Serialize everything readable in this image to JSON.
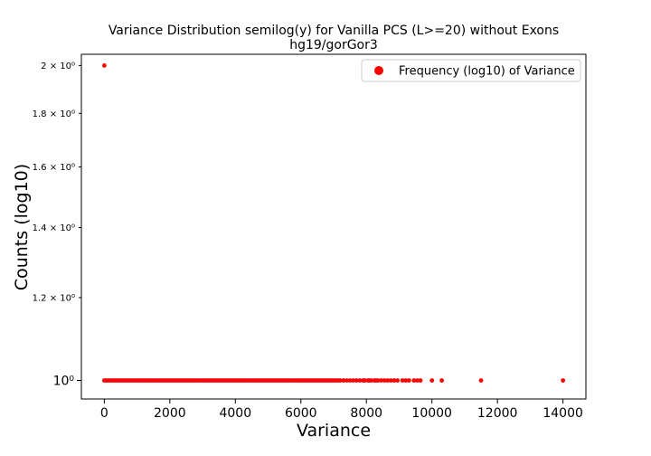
{
  "chart_data": {
    "type": "scatter",
    "title": "Variance Distribution semilog(y) for Vanilla PCS (L>=20) without Exons",
    "subtitle": "hg19/gorGor3",
    "xlabel": "Variance",
    "ylabel": "Counts (log10)",
    "xlim": [
      -700,
      14700
    ],
    "ylim": [
      0.96,
      2.05
    ],
    "yscale": "log",
    "grid": false,
    "legend_position": "top-right",
    "x_ticks": [
      0,
      2000,
      4000,
      6000,
      8000,
      10000,
      12000,
      14000
    ],
    "x_tick_labels": [
      "0",
      "2000",
      "4000",
      "6000",
      "8000",
      "10000",
      "12000",
      "14000"
    ],
    "y_ticks_major": [
      {
        "value": 1,
        "label": "10⁰"
      }
    ],
    "y_ticks_minor": [
      {
        "value": 1.2,
        "label": "1.2 × 10⁰"
      },
      {
        "value": 1.4,
        "label": "1.4 × 10⁰"
      },
      {
        "value": 1.6,
        "label": "1.6 × 10⁰"
      },
      {
        "value": 1.8,
        "label": "1.8 × 10⁰"
      },
      {
        "value": 2.0,
        "label": "2 × 10⁰"
      }
    ],
    "series": [
      {
        "name": "Frequency (log10) of Variance",
        "color": "#ff0000",
        "points": [
          {
            "x": 0,
            "y": 2.0
          }
        ],
        "dense_range": {
          "from": 0,
          "to": 7200,
          "y": 1.0
        },
        "extra_points_y1": [
          7300,
          7400,
          7500,
          7600,
          7700,
          7800,
          7900,
          7950,
          8050,
          8100,
          8150,
          8250,
          8300,
          8350,
          8450,
          8550,
          8650,
          8750,
          8850,
          8950,
          9100,
          9200,
          9300,
          9450,
          9550,
          9650,
          10000,
          10300,
          11500,
          14000
        ]
      }
    ]
  }
}
